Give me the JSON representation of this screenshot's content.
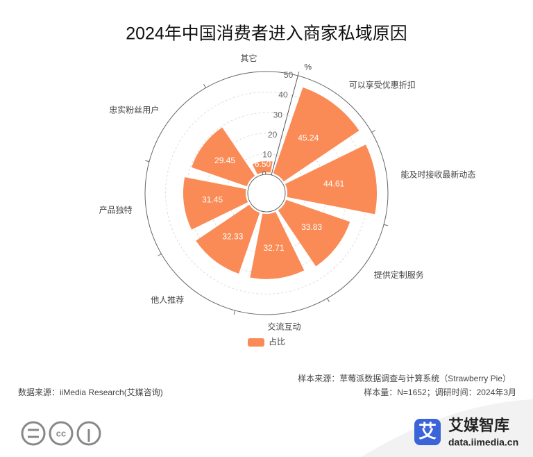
{
  "chart_data": {
    "type": "polar-bar",
    "title": "2024年中国消费者进入商家私域原因",
    "categories": [
      "可以享受优惠折扣",
      "能及时接收最新动态",
      "提供定制服务",
      "交流互动",
      "他人推荐",
      "产品独特",
      "忠实粉丝用户",
      "其它"
    ],
    "series": [
      {
        "name": "占比",
        "color": "#fa8b56",
        "values": [
          45.24,
          44.61,
          33.83,
          32.71,
          32.33,
          31.45,
          29.45,
          6.5
        ],
        "value_labels": [
          "45.24",
          "44.61",
          "33.83",
          "32.71",
          "32.33",
          "31.45",
          "29.45",
          "6.50"
        ]
      }
    ],
    "rlim": [
      0,
      50
    ],
    "rticks": [
      0,
      10,
      20,
      30,
      40,
      50
    ],
    "r_axis_label": "%",
    "grid": true,
    "legend": "bottom"
  },
  "footer": {
    "sample_source": "样本来源：草莓派数据调查与计算系统（Strawberry Pie）",
    "sample": "样本量：N=1652；调研时间：2024年3月",
    "data_source": "数据来源：iiMedia Research(艾媒咨询)",
    "logo_icon": "艾",
    "brand": "艾媒智库",
    "brand_url": "data.iimedia.cn"
  }
}
